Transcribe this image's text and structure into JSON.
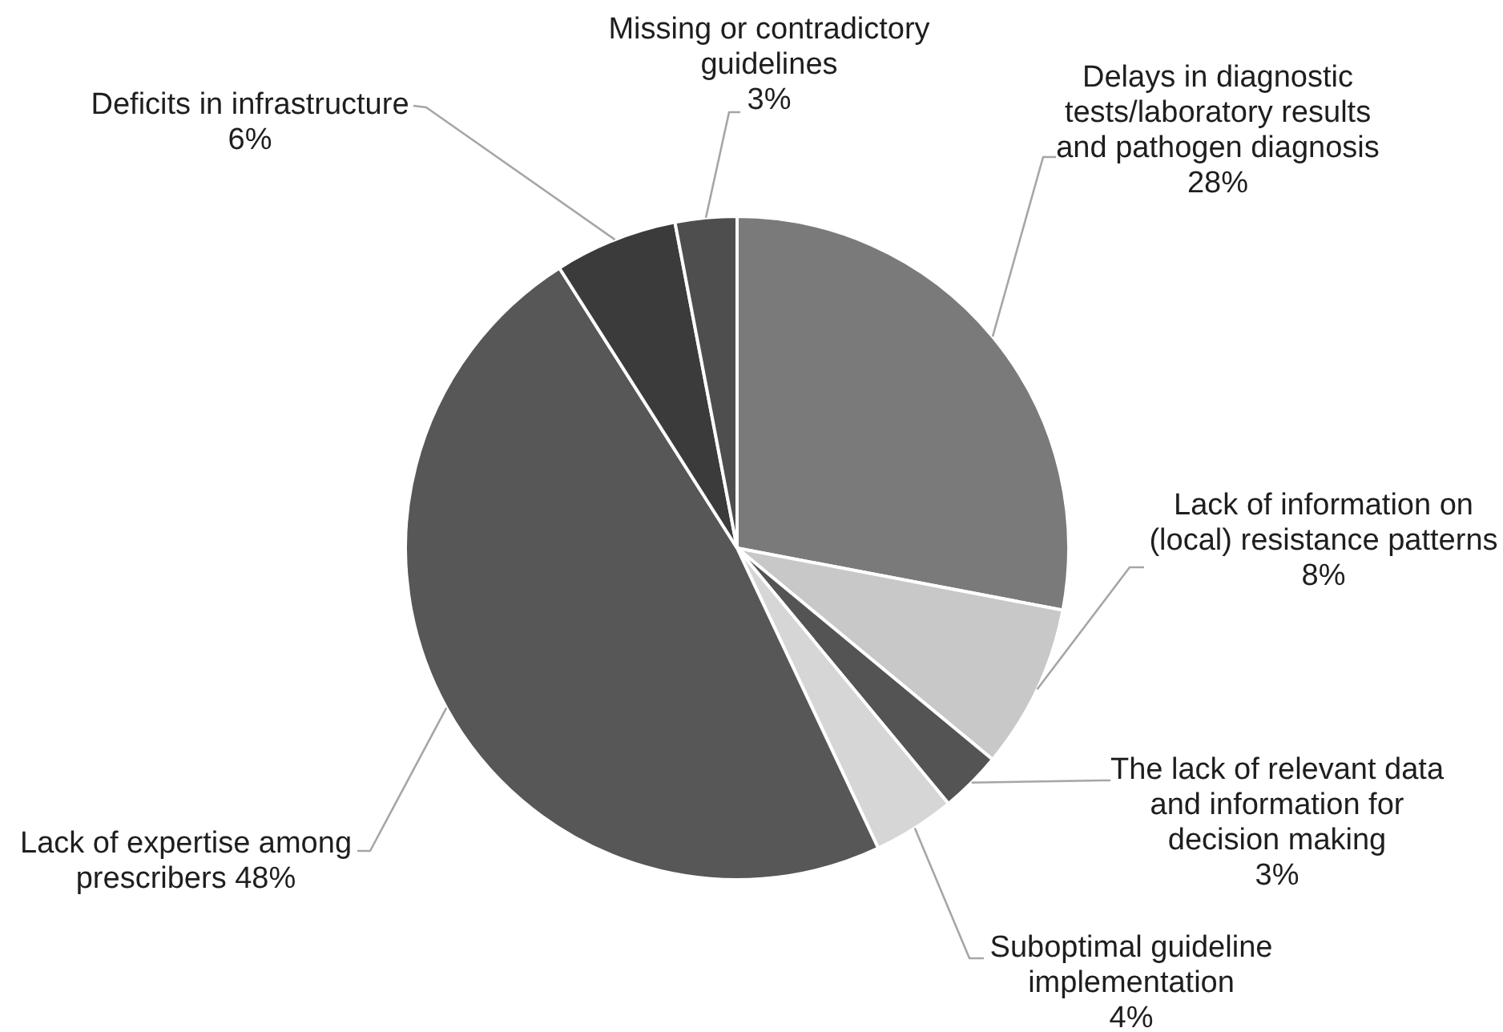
{
  "chart_data": {
    "type": "pie",
    "categories": [
      "Delays in diagnostic tests/laboratory results and pathogen diagnosis",
      "Lack of information on (local) resistance patterns",
      "The lack of relevant data and information for decision making",
      "Suboptimal guideline implementation",
      "Lack of expertise among prescribers",
      "Deficits in infrastructure",
      "Missing or contradictory guidelines"
    ],
    "values": [
      28,
      8,
      3,
      4,
      48,
      6,
      3
    ],
    "value_labels": [
      "28%",
      "8%",
      "3%",
      "4%",
      "48%",
      "6%",
      "3%"
    ],
    "colors": [
      "#7a7a7a",
      "#c8c8c8",
      "#545454",
      "#d6d6d6",
      "#575757",
      "#3b3b3b",
      "#4e4e4e"
    ]
  }
}
